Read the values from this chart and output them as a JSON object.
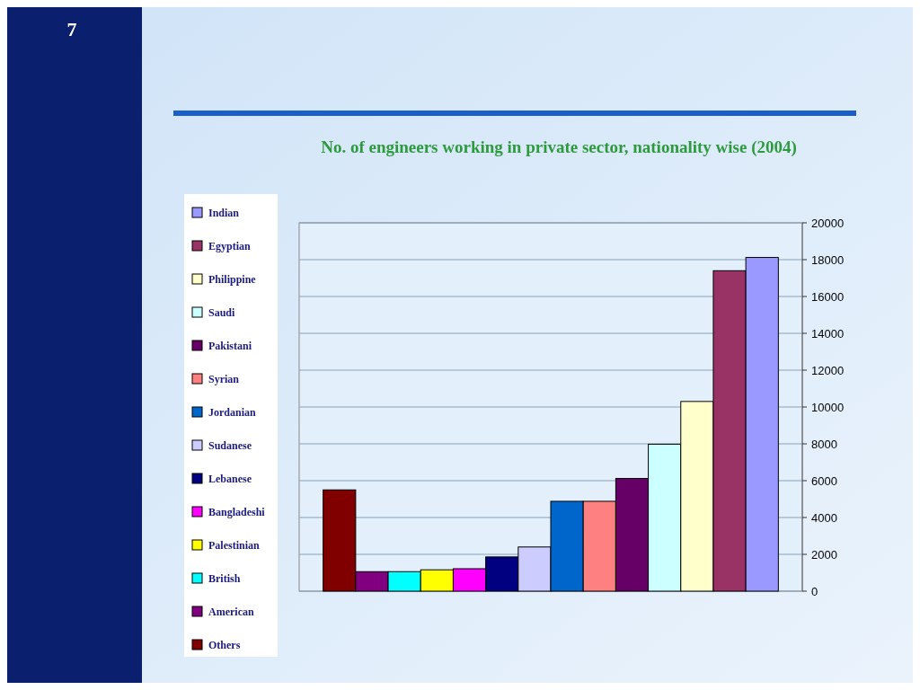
{
  "chart_data": {
    "type": "bar",
    "title": "No. of engineers working in private sector, nationality wise (2004)",
    "categories": [
      null
    ],
    "series": [
      {
        "name": "Others",
        "color": "#800000",
        "values": [
          5500
        ]
      },
      {
        "name": "American",
        "color": "#800080",
        "values": [
          1060
        ]
      },
      {
        "name": "British",
        "color": "#00ffff",
        "values": [
          1060
        ]
      },
      {
        "name": "Palestinian",
        "color": "#ffff00",
        "values": [
          1160
        ]
      },
      {
        "name": "Bangladeshi",
        "color": "#ff00ff",
        "values": [
          1220
        ]
      },
      {
        "name": "Lebanese",
        "color": "#000080",
        "values": [
          1860
        ]
      },
      {
        "name": "Sudanese",
        "color": "#ccccff",
        "values": [
          2400
        ]
      },
      {
        "name": "Jordanian",
        "color": "#0066cc",
        "values": [
          4880
        ]
      },
      {
        "name": "Syrian",
        "color": "#ff8080",
        "values": [
          4880
        ]
      },
      {
        "name": "Pakistani",
        "color": "#660066",
        "values": [
          6120
        ]
      },
      {
        "name": "Saudi",
        "color": "#ccffff",
        "values": [
          7980
        ]
      },
      {
        "name": "Philippine",
        "color": "#ffffcc",
        "values": [
          10300
        ]
      },
      {
        "name": "Egyptian",
        "color": "#993366",
        "values": [
          17400
        ]
      },
      {
        "name": "Indian",
        "color": "#9999ff",
        "values": [
          18120
        ]
      }
    ],
    "ylim": [
      0,
      20000
    ],
    "yticks": [
      0,
      2000,
      4000,
      6000,
      8000,
      10000,
      12000,
      14000,
      16000,
      18000,
      20000
    ],
    "grid": true,
    "legend": "left",
    "annotations": [
      "7"
    ]
  }
}
